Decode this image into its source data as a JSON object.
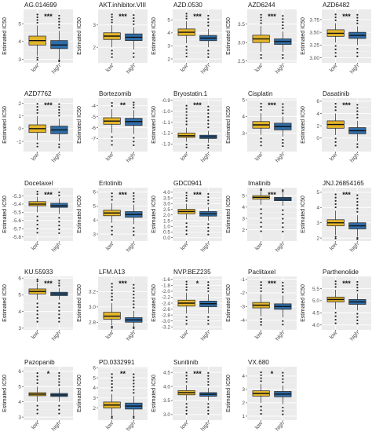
{
  "figure": {
    "ylabel": "Estimated IC50",
    "colors": {
      "low": "#E3B52B",
      "high": "#2F6DA8",
      "panel_bg": "#EBEBEB",
      "grid": "#FFFFFF"
    }
  },
  "chart_data": [
    {
      "type": "box",
      "title": "AG.014699",
      "categories": [
        "low",
        "high"
      ],
      "ylim": [
        2.8,
        5.8
      ],
      "yticks": [
        3,
        4,
        5
      ],
      "significance": "***",
      "series": [
        {
          "name": "low",
          "q1": 3.8,
          "median": 4.05,
          "q3": 4.3,
          "whisker_low": 3.2,
          "whisker_high": 4.9
        },
        {
          "name": "high",
          "q1": 3.6,
          "median": 3.8,
          "q3": 4.05,
          "whisker_low": 3.0,
          "whisker_high": 4.6
        }
      ]
    },
    {
      "type": "box",
      "title": "AKT.inhibitor.VIII",
      "categories": [
        "low",
        "high"
      ],
      "ylim": [
        1.3,
        3.7
      ],
      "yticks": [
        2,
        3
      ],
      "significance": "***",
      "series": [
        {
          "name": "low",
          "q1": 2.35,
          "median": 2.5,
          "q3": 2.65,
          "whisker_low": 2.0,
          "whisker_high": 3.0
        },
        {
          "name": "high",
          "q1": 2.3,
          "median": 2.45,
          "q3": 2.6,
          "whisker_low": 1.9,
          "whisker_high": 2.9
        }
      ]
    },
    {
      "type": "box",
      "title": "AZD.0530",
      "categories": [
        "low",
        "high"
      ],
      "ylim": [
        1.7,
        5.8
      ],
      "yticks": [
        2,
        3,
        4,
        5
      ],
      "significance": "***",
      "series": [
        {
          "name": "low",
          "q1": 3.8,
          "median": 4.05,
          "q3": 4.3,
          "whisker_low": 3.2,
          "whisker_high": 4.9
        },
        {
          "name": "high",
          "q1": 3.4,
          "median": 3.6,
          "q3": 3.8,
          "whisker_low": 2.9,
          "whisker_high": 4.3
        }
      ]
    },
    {
      "type": "box",
      "title": "AZD6244",
      "categories": [
        "low",
        "high"
      ],
      "ylim": [
        2.45,
        3.9
      ],
      "yticks": [
        2.5,
        3.0,
        3.5
      ],
      "significance": "***",
      "series": [
        {
          "name": "low",
          "q1": 3.0,
          "median": 3.1,
          "q3": 3.2,
          "whisker_low": 2.75,
          "whisker_high": 3.45
        },
        {
          "name": "high",
          "q1": 2.95,
          "median": 3.03,
          "q3": 3.1,
          "whisker_low": 2.75,
          "whisker_high": 3.3
        }
      ]
    },
    {
      "type": "box",
      "title": "AZD6482",
      "categories": [
        "low",
        "high"
      ],
      "ylim": [
        2.9,
        3.95
      ],
      "yticks": [
        3.0,
        3.25,
        3.5,
        3.75
      ],
      "significance": "***",
      "series": [
        {
          "name": "low",
          "q1": 3.42,
          "median": 3.48,
          "q3": 3.55,
          "whisker_low": 3.3,
          "whisker_high": 3.68
        },
        {
          "name": "high",
          "q1": 3.38,
          "median": 3.44,
          "q3": 3.5,
          "whisker_low": 3.25,
          "whisker_high": 3.62
        }
      ]
    },
    {
      "type": "box",
      "title": "AZD7762",
      "categories": [
        "low",
        "high"
      ],
      "ylim": [
        -1.8,
        2.4
      ],
      "yticks": [
        -1,
        0,
        1,
        2
      ],
      "significance": "***",
      "series": [
        {
          "name": "low",
          "q1": -0.3,
          "median": 0.0,
          "q3": 0.3,
          "whisker_low": -0.9,
          "whisker_high": 1.0
        },
        {
          "name": "high",
          "q1": -0.4,
          "median": -0.1,
          "q3": 0.2,
          "whisker_low": -1.0,
          "whisker_high": 0.8
        }
      ]
    },
    {
      "type": "box",
      "title": "Bortezomib",
      "categories": [
        "low",
        "high"
      ],
      "ylim": [
        -8.2,
        -3.3
      ],
      "yticks": [
        -7,
        -6,
        -5,
        -4
      ],
      "significance": "**",
      "series": [
        {
          "name": "low",
          "q1": -5.7,
          "median": -5.4,
          "q3": -5.1,
          "whisker_low": -6.5,
          "whisker_high": -4.3
        },
        {
          "name": "high",
          "q1": -5.8,
          "median": -5.45,
          "q3": -5.15,
          "whisker_low": -6.6,
          "whisker_high": -4.4
        }
      ]
    },
    {
      "type": "box",
      "title": "Bryostatin.1",
      "categories": [
        "low",
        "high"
      ],
      "ylim": [
        -1.37,
        -0.88
      ],
      "yticks": [
        -1.3,
        -1.2,
        -1.1,
        -1.0,
        -0.9
      ],
      "significance": "***",
      "series": [
        {
          "name": "low",
          "q1": -1.24,
          "median": -1.225,
          "q3": -1.2,
          "whisker_low": -1.28,
          "whisker_high": -1.15
        },
        {
          "name": "high",
          "q1": -1.25,
          "median": -1.235,
          "q3": -1.22,
          "whisker_low": -1.29,
          "whisker_high": -1.18
        }
      ]
    },
    {
      "type": "box",
      "title": "Cisplatin",
      "categories": [
        "low",
        "high"
      ],
      "ylim": [
        1.9,
        5.1
      ],
      "yticks": [
        3,
        4,
        5
      ],
      "significance": "***",
      "series": [
        {
          "name": "low",
          "q1": 3.3,
          "median": 3.5,
          "q3": 3.7,
          "whisker_low": 2.9,
          "whisker_high": 4.2
        },
        {
          "name": "high",
          "q1": 3.2,
          "median": 3.4,
          "q3": 3.6,
          "whisker_low": 2.8,
          "whisker_high": 4.0
        }
      ]
    },
    {
      "type": "box",
      "title": "Dasatinib",
      "categories": [
        "low",
        "high"
      ],
      "ylim": [
        -2.2,
        6.5
      ],
      "yticks": [
        0,
        2,
        4,
        6
      ],
      "significance": "***",
      "series": [
        {
          "name": "low",
          "q1": 1.6,
          "median": 2.2,
          "q3": 2.8,
          "whisker_low": 0.5,
          "whisker_high": 4.0
        },
        {
          "name": "high",
          "q1": 0.7,
          "median": 1.2,
          "q3": 1.7,
          "whisker_low": -0.5,
          "whisker_high": 2.8
        }
      ]
    },
    {
      "type": "box",
      "title": "Docetaxel",
      "categories": [
        "low",
        "high"
      ],
      "ylim": [
        -5.85,
        -5.2
      ],
      "yticks": [
        -5.3,
        -5.4,
        -5.5,
        -5.6,
        -5.7,
        -5.8
      ],
      "significance": "***",
      "series": [
        {
          "name": "low",
          "q1": -5.42,
          "median": -5.4,
          "q3": -5.37,
          "whisker_low": -5.5,
          "whisker_high": -5.31
        },
        {
          "name": "high",
          "q1": -5.44,
          "median": -5.42,
          "q3": -5.39,
          "whisker_low": -5.52,
          "whisker_high": -5.33
        }
      ]
    },
    {
      "type": "box",
      "title": "Erlotinib",
      "categories": [
        "low",
        "high"
      ],
      "ylim": [
        2.5,
        6.3
      ],
      "yticks": [
        3,
        4,
        5,
        6
      ],
      "significance": "***",
      "series": [
        {
          "name": "low",
          "q1": 4.3,
          "median": 4.5,
          "q3": 4.7,
          "whisker_low": 3.8,
          "whisker_high": 5.2
        },
        {
          "name": "high",
          "q1": 4.2,
          "median": 4.4,
          "q3": 4.6,
          "whisker_low": 3.7,
          "whisker_high": 5.1
        }
      ]
    },
    {
      "type": "box",
      "title": "GDC0941",
      "categories": [
        "low",
        "high"
      ],
      "ylim": [
        -0.3,
        4.4
      ],
      "yticks": [
        0.0,
        0.5,
        1.0,
        1.5,
        2.0,
        2.5,
        3.0,
        3.5,
        4.0
      ],
      "significance": "***",
      "series": [
        {
          "name": "low",
          "q1": 2.1,
          "median": 2.3,
          "q3": 2.5,
          "whisker_low": 1.6,
          "whisker_high": 3.0
        },
        {
          "name": "high",
          "q1": 1.9,
          "median": 2.1,
          "q3": 2.3,
          "whisker_low": 1.5,
          "whisker_high": 2.7
        }
      ]
    },
    {
      "type": "box",
      "title": "Imatinib",
      "categories": [
        "low",
        "high"
      ],
      "ylim": [
        1.0,
        5.7
      ],
      "yticks": [
        2,
        3,
        4,
        5
      ],
      "significance": "***",
      "series": [
        {
          "name": "low",
          "q1": 4.7,
          "median": 4.85,
          "q3": 5.0,
          "whisker_low": 4.2,
          "whisker_high": 5.4
        },
        {
          "name": "high",
          "q1": 4.55,
          "median": 4.7,
          "q3": 4.85,
          "whisker_low": 4.1,
          "whisker_high": 5.2
        }
      ]
    },
    {
      "type": "box",
      "title": "JNJ.26854165",
      "categories": [
        "low",
        "high"
      ],
      "ylim": [
        1.8,
        5.3
      ],
      "yticks": [
        2,
        3,
        4,
        5
      ],
      "significance": "***",
      "series": [
        {
          "name": "low",
          "q1": 2.8,
          "median": 3.0,
          "q3": 3.2,
          "whisker_low": 2.2,
          "whisker_high": 3.8
        },
        {
          "name": "high",
          "q1": 2.6,
          "median": 2.8,
          "q3": 3.0,
          "whisker_low": 2.1,
          "whisker_high": 3.5
        }
      ]
    },
    {
      "type": "box",
      "title": "KU.55933",
      "categories": [
        "low",
        "high"
      ],
      "ylim": [
        2.9,
        6.1
      ],
      "yticks": [
        3,
        4,
        5,
        6
      ],
      "significance": "***",
      "series": [
        {
          "name": "low",
          "q1": 5.05,
          "median": 5.2,
          "q3": 5.35,
          "whisker_low": 4.7,
          "whisker_high": 5.7
        },
        {
          "name": "high",
          "q1": 4.95,
          "median": 5.05,
          "q3": 5.15,
          "whisker_low": 4.7,
          "whisker_high": 5.4
        }
      ]
    },
    {
      "type": "box",
      "title": "LFM.A13",
      "categories": [
        "low",
        "high"
      ],
      "ylim": [
        2.7,
        3.4
      ],
      "yticks": [
        2.8,
        3.0,
        3.2
      ],
      "significance": "***",
      "series": [
        {
          "name": "low",
          "q1": 2.84,
          "median": 2.88,
          "q3": 2.93,
          "whisker_low": 2.76,
          "whisker_high": 3.05
        },
        {
          "name": "high",
          "q1": 2.8,
          "median": 2.83,
          "q3": 2.86,
          "whisker_low": 2.75,
          "whisker_high": 2.95
        }
      ]
    },
    {
      "type": "box",
      "title": "NVP.BEZ235",
      "categories": [
        "low",
        "high"
      ],
      "ylim": [
        -3.3,
        -1.5
      ],
      "yticks": [
        -3.2,
        -3.0,
        -2.8,
        -2.6,
        -2.4,
        -2.2,
        -2.0,
        -1.8,
        -1.6
      ],
      "significance": "*",
      "series": [
        {
          "name": "low",
          "q1": -2.5,
          "median": -2.4,
          "q3": -2.3,
          "whisker_low": -2.75,
          "whisker_high": -2.05
        },
        {
          "name": "high",
          "q1": -2.52,
          "median": -2.42,
          "q3": -2.33,
          "whisker_low": -2.75,
          "whisker_high": -2.1
        }
      ]
    },
    {
      "type": "box",
      "title": "Paclitaxel",
      "categories": [
        "low",
        "high"
      ],
      "ylim": [
        -4.7,
        -0.8
      ],
      "yticks": [
        -4,
        -3,
        -2,
        -1
      ],
      "significance": "***",
      "series": [
        {
          "name": "low",
          "q1": -3.1,
          "median": -2.9,
          "q3": -2.7,
          "whisker_low": -3.7,
          "whisker_high": -2.1
        },
        {
          "name": "high",
          "q1": -3.2,
          "median": -3.0,
          "q3": -2.8,
          "whisker_low": -3.8,
          "whisker_high": -2.2
        }
      ]
    },
    {
      "type": "box",
      "title": "Parthenolide",
      "categories": [
        "low",
        "high"
      ],
      "ylim": [
        3.8,
        6.0
      ],
      "yticks": [
        4.0,
        4.5,
        5.0,
        5.5
      ],
      "significance": "***",
      "series": [
        {
          "name": "low",
          "q1": 4.95,
          "median": 5.05,
          "q3": 5.15,
          "whisker_low": 4.65,
          "whisker_high": 5.45
        },
        {
          "name": "high",
          "q1": 4.85,
          "median": 4.95,
          "q3": 5.05,
          "whisker_low": 4.6,
          "whisker_high": 5.3
        }
      ]
    },
    {
      "type": "box",
      "title": "Pazopanib",
      "categories": [
        "low",
        "high"
      ],
      "ylim": [
        2.8,
        6.3
      ],
      "yticks": [
        3,
        4,
        5,
        6
      ],
      "significance": "*",
      "series": [
        {
          "name": "low",
          "q1": 4.4,
          "median": 4.5,
          "q3": 4.6,
          "whisker_low": 4.0,
          "whisker_high": 5.0
        },
        {
          "name": "high",
          "q1": 4.35,
          "median": 4.45,
          "q3": 4.55,
          "whisker_low": 4.0,
          "whisker_high": 4.9
        }
      ]
    },
    {
      "type": "box",
      "title": "PD.0332991",
      "categories": [
        "low",
        "high"
      ],
      "ylim": [
        0.8,
        6.1
      ],
      "yticks": [
        2,
        3,
        4,
        5,
        6
      ],
      "significance": "**",
      "series": [
        {
          "name": "low",
          "q1": 2.0,
          "median": 2.3,
          "q3": 2.6,
          "whisker_low": 1.3,
          "whisker_high": 3.4
        },
        {
          "name": "high",
          "q1": 1.9,
          "median": 2.2,
          "q3": 2.5,
          "whisker_low": 1.3,
          "whisker_high": 3.2
        }
      ]
    },
    {
      "type": "box",
      "title": "Sunitinib",
      "categories": [
        "low",
        "high"
      ],
      "ylim": [
        2.8,
        4.7
      ],
      "yticks": [
        3.0,
        3.5,
        4.0,
        4.5
      ],
      "significance": "***",
      "series": [
        {
          "name": "low",
          "q1": 3.7,
          "median": 3.78,
          "q3": 3.85,
          "whisker_low": 3.5,
          "whisker_high": 4.05
        },
        {
          "name": "high",
          "q1": 3.65,
          "median": 3.72,
          "q3": 3.78,
          "whisker_low": 3.5,
          "whisker_high": 3.95
        }
      ]
    },
    {
      "type": "box",
      "title": "VX.680",
      "categories": [
        "low",
        "high"
      ],
      "ylim": [
        0.7,
        4.7
      ],
      "yticks": [
        1,
        2,
        3,
        4
      ],
      "significance": "*",
      "series": [
        {
          "name": "low",
          "q1": 2.5,
          "median": 2.7,
          "q3": 2.9,
          "whisker_low": 2.0,
          "whisker_high": 3.4
        },
        {
          "name": "high",
          "q1": 2.45,
          "median": 2.65,
          "q3": 2.85,
          "whisker_low": 1.9,
          "whisker_high": 3.3
        }
      ]
    }
  ]
}
